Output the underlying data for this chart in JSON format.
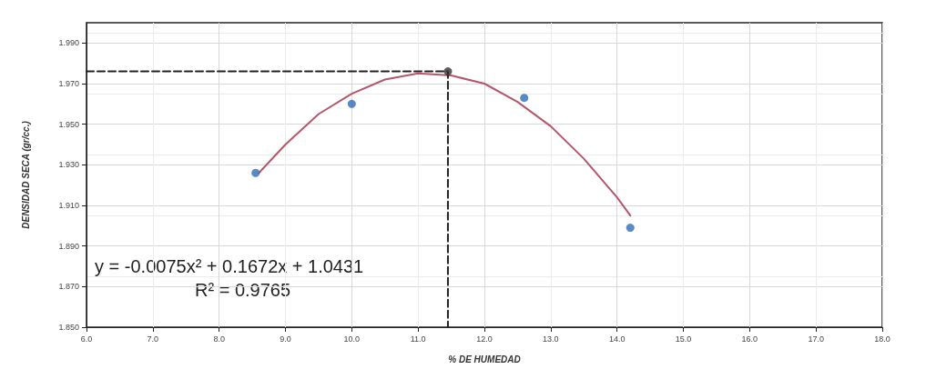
{
  "chart_data": {
    "type": "scatter",
    "xlabel": "% DE HUMEDAD",
    "ylabel": "DENSIDAD SECA (gr/cc.)",
    "annotations": [
      "y = -0.0075x² + 0.1672x + 1.0431",
      "R² = 0.9765"
    ],
    "series": [
      {
        "type": "line",
        "color": "#b5566a",
        "marker": "none",
        "line_style": "solid",
        "x": [
          8.6,
          9,
          9.5,
          10,
          10.5,
          11,
          11.5,
          12,
          12.5,
          13,
          13.5,
          14,
          14.2
        ],
        "values": [
          1.926,
          1.94,
          1.955,
          1.965,
          1.972,
          1.975,
          1.974,
          1.97,
          1.961,
          1.949,
          1.933,
          1.914,
          1.905
        ]
      },
      {
        "type": "scatter",
        "color": "#2f6db5",
        "marker": "circle",
        "x": [
          8.55,
          10.0,
          12.6,
          14.2
        ],
        "values": [
          1.926,
          1.96,
          1.963,
          1.899
        ]
      },
      {
        "type": "line",
        "color": "#222222",
        "marker": "none",
        "line_style": "dashed",
        "x": [
          6.0,
          11.45,
          11.45
        ],
        "values": [
          1.976,
          1.976,
          1.85
        ]
      },
      {
        "type": "scatter",
        "color": "#333333",
        "marker": "circle",
        "x": [
          11.45
        ],
        "values": [
          1.976
        ]
      }
    ],
    "xlim": [
      6,
      18
    ],
    "xticks": [
      {
        "value": 6,
        "label": "6.0"
      },
      {
        "value": 7,
        "label": "7.0"
      },
      {
        "value": 8,
        "label": "8.0"
      },
      {
        "value": 9,
        "label": "9.0"
      },
      {
        "value": 10,
        "label": "10.0"
      },
      {
        "value": 11,
        "label": "11.0"
      },
      {
        "value": 12,
        "label": "12.0"
      },
      {
        "value": 13,
        "label": "13.0"
      },
      {
        "value": 14,
        "label": "14.0"
      },
      {
        "value": 15,
        "label": "15.0"
      },
      {
        "value": 16,
        "label": "16.0"
      },
      {
        "value": 17,
        "label": "17.0"
      },
      {
        "value": 18,
        "label": "18.0"
      }
    ],
    "ylim": [
      1.85,
      2.0
    ],
    "yticks": [
      {
        "value": 1.85,
        "label": "1.850"
      },
      {
        "value": 1.87,
        "label": "1.870"
      },
      {
        "value": 1.89,
        "label": "1.890"
      },
      {
        "value": 1.91,
        "label": "1.910"
      },
      {
        "value": 1.93,
        "label": "1.930"
      },
      {
        "value": 1.95,
        "label": "1.950"
      },
      {
        "value": 1.97,
        "label": "1.970"
      },
      {
        "value": 1.99,
        "label": "1.990"
      }
    ],
    "grid": true
  }
}
